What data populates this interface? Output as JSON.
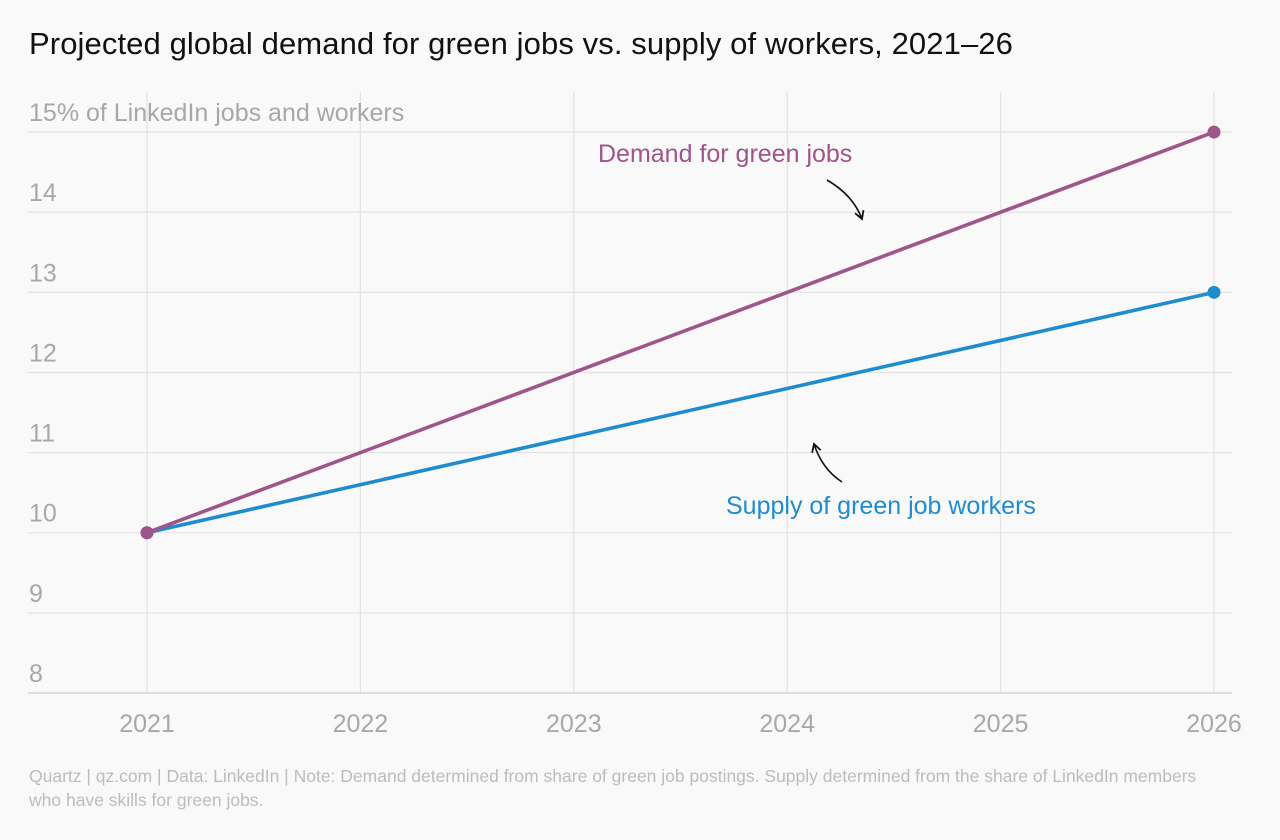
{
  "chart_data": {
    "type": "line",
    "title": "Projected global demand for green jobs vs. supply of workers, 2021–26",
    "ylabel": "% of LinkedIn jobs and workers",
    "x": [
      2021,
      2022,
      2023,
      2024,
      2025,
      2026
    ],
    "x_tick_labels": [
      "2021",
      "2022",
      "2023",
      "2024",
      "2025",
      "2026"
    ],
    "y_tick_labels": [
      "8",
      "9",
      "10",
      "11",
      "12",
      "13",
      "14",
      "15"
    ],
    "ylim": [
      8,
      15.5
    ],
    "y_ticks": [
      8,
      9,
      10,
      11,
      12,
      13,
      14,
      15
    ],
    "grid": true,
    "series": [
      {
        "name": "Demand for green jobs",
        "color": "#a0558a",
        "points": [
          [
            2021,
            10
          ],
          [
            2026,
            15
          ]
        ]
      },
      {
        "name": "Supply of green job workers",
        "color": "#1f8ccf",
        "points": [
          [
            2021,
            10
          ],
          [
            2026,
            13
          ]
        ]
      }
    ],
    "source": "Quartz | qz.com | Data: LinkedIn | Note: Demand determined from share of green job postings. Supply determined from the share of LinkedIn members who have skills for green jobs."
  }
}
